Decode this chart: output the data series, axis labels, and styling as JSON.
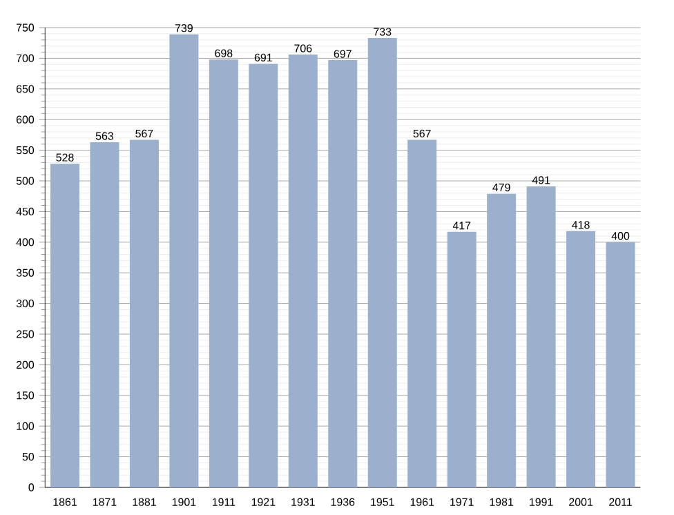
{
  "chart_data": {
    "type": "bar",
    "categories": [
      "1861",
      "1871",
      "1881",
      "1901",
      "1911",
      "1921",
      "1931",
      "1936",
      "1951",
      "1961",
      "1971",
      "1981",
      "1991",
      "2001",
      "2011"
    ],
    "values": [
      528,
      563,
      567,
      739,
      698,
      691,
      706,
      697,
      733,
      567,
      417,
      479,
      491,
      418,
      400
    ],
    "color": "#9ab0cc",
    "ylim": [
      0,
      750
    ],
    "yticks": [
      0,
      50,
      100,
      150,
      200,
      250,
      300,
      350,
      400,
      450,
      500,
      550,
      600,
      650,
      700,
      750
    ],
    "grid": "y",
    "data_labels": true
  }
}
